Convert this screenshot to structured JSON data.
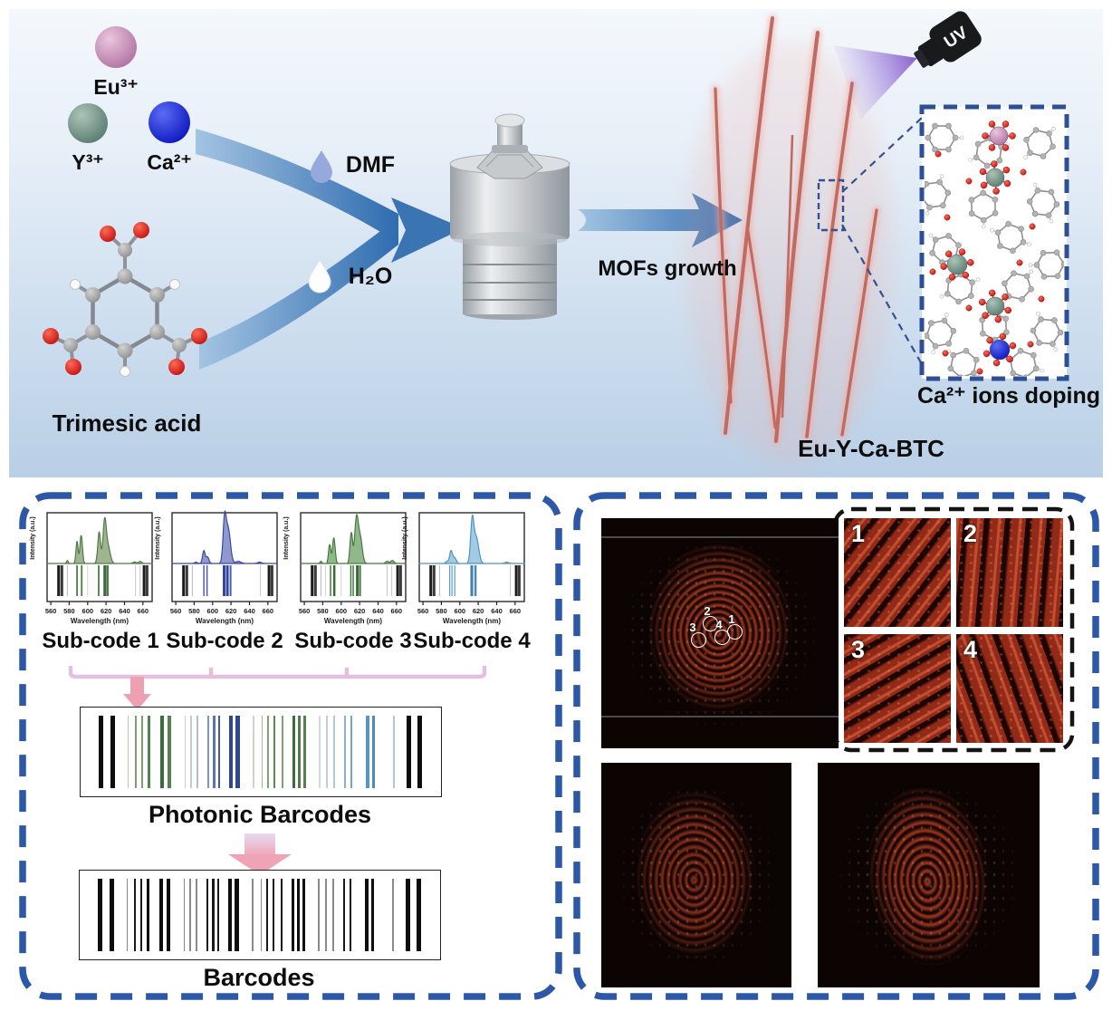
{
  "scheme": {
    "ions": [
      {
        "label": "Eu³⁺",
        "color": "#b779aa"
      },
      {
        "label": "Y³⁺",
        "color": "#5f8276"
      },
      {
        "label": "Ca²⁺",
        "color": "#1322cc"
      }
    ],
    "molecule_label": "Trimesic acid",
    "solvents": [
      {
        "label": "DMF",
        "drop_color": "#96a9dc"
      },
      {
        "label": "H₂O",
        "drop_color": "#fbfdff"
      }
    ],
    "growth_label": "MOFs growth",
    "uv_label": "UV",
    "product_label": "Eu-Y-Ca-BTC",
    "doping_label": "Ca²⁺ ions doping"
  },
  "barcode_panel": {
    "subcode_labels": [
      "Sub-code 1",
      "Sub-code 2",
      "Sub-code 3",
      "Sub-code 4"
    ],
    "photonic_title": "Photonic Barcodes",
    "barcode_title": "Barcodes"
  },
  "fingerprint_panel": {
    "spot_labels": [
      "1",
      "2",
      "3",
      "4"
    ],
    "tile_labels": [
      "1",
      "2",
      "3",
      "4"
    ]
  },
  "colors": {
    "dash_border": "#2d58a7",
    "arrow_light": "#9dc0e0",
    "arrow_dark": "#2f6cb0",
    "fiber": "#c06b62",
    "uv_beam": "#7a4ec8",
    "bracket": "#e4bfdf",
    "bracket_arrow": "#ee9fb1"
  },
  "chart_data": [
    {
      "id": "sub1",
      "type": "area",
      "title": "Sub-code 1",
      "xlabel": "Wavelength (nm)",
      "ylabel": "Intensity (a.u.)",
      "xlim": [
        556,
        670
      ],
      "xticks": [
        560,
        580,
        600,
        620,
        640,
        660
      ],
      "color": "#4e7b46",
      "fill": "rgba(136,161,118,0.8)",
      "peaks": [
        [
          578,
          0.07,
          1.3
        ],
        [
          588.5,
          0.52,
          1.6
        ],
        [
          593,
          0.66,
          1.9
        ],
        [
          612.5,
          0.74,
          2.1
        ],
        [
          618.5,
          1.0,
          2.6
        ],
        [
          622.5,
          0.35,
          3.2
        ],
        [
          651,
          0.035,
          2.5
        ],
        [
          657,
          0.05,
          2.2
        ]
      ],
      "lines": [
        [
          568.5,
          3,
          "#1d1d1d"
        ],
        [
          572,
          3,
          "#3a3a3a"
        ],
        [
          578,
          1,
          "#b8b8b8"
        ],
        [
          588.5,
          1.8,
          "#4e7b46"
        ],
        [
          593.5,
          1.8,
          "#4e7b46"
        ],
        [
          600,
          0.8,
          "#c8c8c8"
        ],
        [
          612,
          1.8,
          "#4e7b46"
        ],
        [
          618.8,
          3.5,
          "#3e6b3c"
        ],
        [
          621.8,
          2,
          "#4e7b46"
        ],
        [
          652,
          0.8,
          "#b8b8b8"
        ],
        [
          657,
          0.8,
          "#b8b8b8"
        ],
        [
          661.3,
          3,
          "#1d1d1d"
        ],
        [
          664.5,
          3,
          "#3a3a3a"
        ]
      ]
    },
    {
      "id": "sub2",
      "type": "area",
      "title": "Sub-code 2",
      "xlabel": "Wavelength (nm)",
      "ylabel": "Intensity (a.u.)",
      "xlim": [
        556,
        670
      ],
      "xticks": [
        560,
        580,
        600,
        620,
        640,
        660
      ],
      "color": "#3a4aa0",
      "fill": "rgba(116,128,195,0.8)",
      "peaks": [
        [
          582,
          0.03,
          2
        ],
        [
          590.5,
          0.3,
          2.0
        ],
        [
          594.5,
          0.15,
          2.2
        ],
        [
          613,
          1.0,
          2.4
        ],
        [
          617,
          0.8,
          3.4
        ],
        [
          628,
          0.05,
          4
        ],
        [
          651,
          0.03,
          3
        ]
      ],
      "lines": [
        [
          568.5,
          3,
          "#1d1d1d"
        ],
        [
          572,
          3,
          "#3a3a3a"
        ],
        [
          578,
          1,
          "#b8b8b8"
        ],
        [
          590.5,
          1.5,
          "#4a5fae"
        ],
        [
          594,
          1.5,
          "#4a5fae"
        ],
        [
          612.5,
          3,
          "#35479c"
        ],
        [
          616,
          3,
          "#35479c"
        ],
        [
          619.5,
          2,
          "#4a5fae"
        ],
        [
          652,
          0.8,
          "#b8b8b8"
        ],
        [
          661.3,
          3,
          "#1d1d1d"
        ],
        [
          664.5,
          3,
          "#3a3a3a"
        ]
      ]
    },
    {
      "id": "sub3",
      "type": "area",
      "title": "Sub-code 3",
      "xlabel": "Wavelength (nm)",
      "ylabel": "Intensity (a.u.)",
      "xlim": [
        556,
        670
      ],
      "xticks": [
        560,
        580,
        600,
        620,
        640,
        660
      ],
      "color": "#44793f",
      "fill": "rgba(118,166,110,0.8)",
      "peaks": [
        [
          578,
          0.05,
          1.4
        ],
        [
          587.5,
          0.44,
          1.7
        ],
        [
          592,
          0.6,
          2.0
        ],
        [
          611,
          0.72,
          2.0
        ],
        [
          616.5,
          1.0,
          2.6
        ],
        [
          620.5,
          0.62,
          3.2
        ],
        [
          650,
          0.05,
          2.4
        ],
        [
          655.5,
          0.07,
          2.4
        ]
      ],
      "lines": [
        [
          568.5,
          3,
          "#1d1d1d"
        ],
        [
          572,
          3,
          "#3a3a3a"
        ],
        [
          578,
          1,
          "#b8b8b8"
        ],
        [
          583,
          0.8,
          "#c8c8c8"
        ],
        [
          588.5,
          1.5,
          "#44793f"
        ],
        [
          592.5,
          2.5,
          "#3a6a37"
        ],
        [
          600,
          0.8,
          "#c8c8c8"
        ],
        [
          610.5,
          1.5,
          "#44793f"
        ],
        [
          613,
          1.5,
          "#44793f"
        ],
        [
          617.5,
          3,
          "#3a6a37"
        ],
        [
          620.5,
          2,
          "#44793f"
        ],
        [
          650,
          0.8,
          "#b8b8b8"
        ],
        [
          655,
          0.8,
          "#b8b8b8"
        ],
        [
          661.3,
          3,
          "#1d1d1d"
        ],
        [
          664.5,
          3,
          "#3a3a3a"
        ]
      ]
    },
    {
      "id": "sub4",
      "type": "area",
      "title": "Sub-code 4",
      "xlabel": "Wavelength (nm)",
      "ylabel": "Intensity (a.u.)",
      "xlim": [
        556,
        670
      ],
      "xticks": [
        560,
        580,
        600,
        620,
        640,
        660
      ],
      "color": "#4f94c0",
      "fill": "rgba(145,193,224,0.85)",
      "peaks": [
        [
          586,
          0.05,
          2
        ],
        [
          590.5,
          0.3,
          2.2
        ],
        [
          594.5,
          0.13,
          2.4
        ],
        [
          613.5,
          1.0,
          2.5
        ],
        [
          618,
          0.6,
          3.6
        ],
        [
          651,
          0.03,
          3
        ]
      ],
      "lines": [
        [
          568.5,
          3,
          "#1d1d1d"
        ],
        [
          572,
          3,
          "#3a3a3a"
        ],
        [
          578,
          1,
          "#b8b8b8"
        ],
        [
          589,
          1.2,
          "#5b9bc4"
        ],
        [
          591.5,
          1.2,
          "#5b9bc4"
        ],
        [
          594.5,
          1.2,
          "#5b9bc4"
        ],
        [
          613,
          3,
          "#3f7fa8"
        ],
        [
          617,
          2.5,
          "#4a89b4"
        ],
        [
          655,
          0.8,
          "#b8b8b8"
        ],
        [
          661.3,
          3,
          "#1d1d1d"
        ],
        [
          664.5,
          3,
          "#3a3a3a"
        ]
      ]
    },
    {
      "id": "photonic",
      "type": "barcode",
      "title": "Photonic Barcodes",
      "bars": [
        [
          0.05,
          5,
          "#0d0d0d"
        ],
        [
          0.082,
          5,
          "#0d0d0d"
        ],
        [
          0.13,
          1.5,
          "#b8c8b2"
        ],
        [
          0.152,
          2,
          "#7ba071"
        ],
        [
          0.168,
          2,
          "#7ba071"
        ],
        [
          0.185,
          3,
          "#54814c"
        ],
        [
          0.222,
          4,
          "#3e6b3c"
        ],
        [
          0.24,
          4,
          "#54814c"
        ],
        [
          0.288,
          1.5,
          "#c8cfd8"
        ],
        [
          0.305,
          1.5,
          "#c0cbd8"
        ],
        [
          0.322,
          1.5,
          "#aebdd2"
        ],
        [
          0.352,
          2,
          "#7e94cb"
        ],
        [
          0.368,
          2.5,
          "#5b73b8"
        ],
        [
          0.382,
          2,
          "#46589f"
        ],
        [
          0.412,
          4.5,
          "#2e4694"
        ],
        [
          0.43,
          4.5,
          "#2e4694"
        ],
        [
          0.478,
          1.5,
          "#ccd4cc"
        ],
        [
          0.502,
          1.5,
          "#9fbd92"
        ],
        [
          0.518,
          2,
          "#7ba671"
        ],
        [
          0.535,
          2.5,
          "#5e8b55"
        ],
        [
          0.558,
          2,
          "#7ba671"
        ],
        [
          0.588,
          3,
          "#3e6b3c"
        ],
        [
          0.603,
          3,
          "#4e7b46"
        ],
        [
          0.618,
          3,
          "#54814c"
        ],
        [
          0.662,
          1.5,
          "#d2d8dc"
        ],
        [
          0.682,
          1.5,
          "#c4cdd5"
        ],
        [
          0.702,
          1.5,
          "#b6c6d4"
        ],
        [
          0.732,
          2,
          "#8ab4cd"
        ],
        [
          0.748,
          2,
          "#6ea6c6"
        ],
        [
          0.792,
          3.5,
          "#5896bc"
        ],
        [
          0.808,
          3.5,
          "#4c8cb6"
        ],
        [
          0.868,
          1.5,
          "#abc8da"
        ],
        [
          0.905,
          5,
          "#0d0d0d"
        ],
        [
          0.935,
          5,
          "#0d0d0d"
        ]
      ]
    },
    {
      "id": "plain",
      "type": "barcode",
      "title": "Barcodes",
      "bars": [
        [
          0.05,
          5,
          "#0d0d0d"
        ],
        [
          0.082,
          5,
          "#0d0d0d"
        ],
        [
          0.13,
          1.5,
          "#8a8a8a"
        ],
        [
          0.152,
          2,
          "#1a1a1a"
        ],
        [
          0.168,
          2,
          "#1a1a1a"
        ],
        [
          0.185,
          3,
          "#111111"
        ],
        [
          0.222,
          4,
          "#0d0d0d"
        ],
        [
          0.24,
          4,
          "#0d0d0d"
        ],
        [
          0.288,
          1.5,
          "#8a8a8a"
        ],
        [
          0.305,
          1.5,
          "#8a8a8a"
        ],
        [
          0.322,
          1.5,
          "#8a8a8a"
        ],
        [
          0.352,
          2,
          "#1a1a1a"
        ],
        [
          0.368,
          2.5,
          "#1a1a1a"
        ],
        [
          0.382,
          2,
          "#1a1a1a"
        ],
        [
          0.412,
          4.5,
          "#0d0d0d"
        ],
        [
          0.43,
          4.5,
          "#0d0d0d"
        ],
        [
          0.478,
          1.5,
          "#8a8a8a"
        ],
        [
          0.502,
          1.5,
          "#8a8a8a"
        ],
        [
          0.518,
          2,
          "#1a1a1a"
        ],
        [
          0.535,
          2.5,
          "#1a1a1a"
        ],
        [
          0.558,
          2,
          "#1a1a1a"
        ],
        [
          0.588,
          3,
          "#0d0d0d"
        ],
        [
          0.603,
          3,
          "#0d0d0d"
        ],
        [
          0.618,
          3,
          "#111111"
        ],
        [
          0.662,
          1.5,
          "#8a8a8a"
        ],
        [
          0.682,
          1.5,
          "#8a8a8a"
        ],
        [
          0.702,
          1.5,
          "#8a8a8a"
        ],
        [
          0.732,
          2,
          "#1a1a1a"
        ],
        [
          0.748,
          2,
          "#1a1a1a"
        ],
        [
          0.792,
          3.5,
          "#0d0d0d"
        ],
        [
          0.808,
          3.5,
          "#0d0d0d"
        ],
        [
          0.868,
          1.5,
          "#8a8a8a"
        ],
        [
          0.905,
          5,
          "#0d0d0d"
        ],
        [
          0.935,
          5,
          "#0d0d0d"
        ]
      ]
    }
  ]
}
